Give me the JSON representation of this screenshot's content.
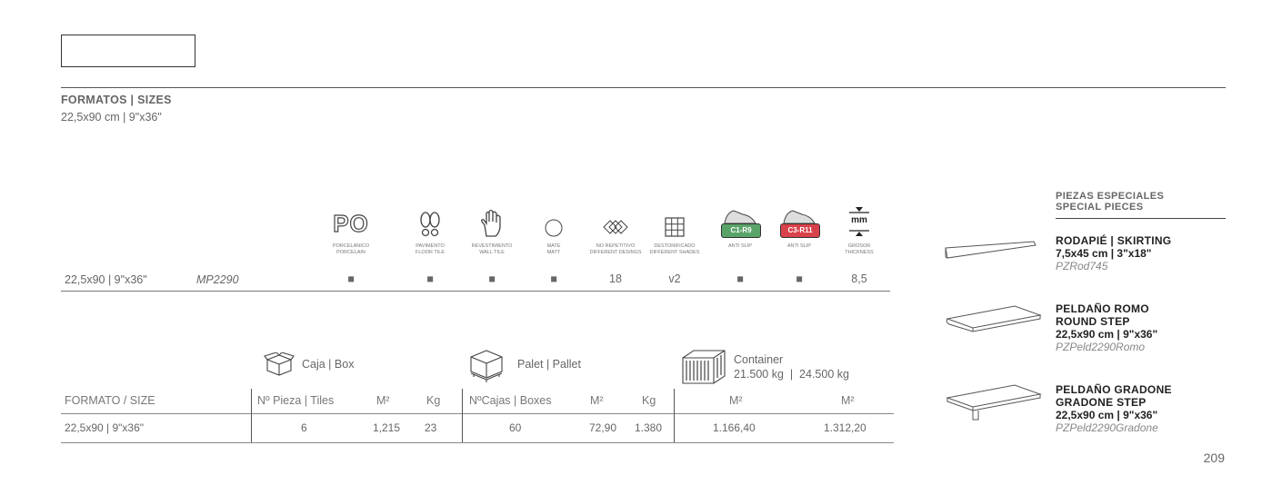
{
  "formatos": {
    "title": "FORMATOS | SIZES",
    "value": "22,5x90 cm | 9\"x36\""
  },
  "features": [
    {
      "icon": "porcelain-icon",
      "label1": "PORCELÁNICO",
      "label2": "PORCELAIN"
    },
    {
      "icon": "footprints-icon",
      "label1": "PAVIMENTO",
      "label2": "FLOOR TILE"
    },
    {
      "icon": "hand-icon",
      "label1": "REVESTIMIENTO",
      "label2": "WALL TILE"
    },
    {
      "icon": "circle-icon",
      "label1": "MATE",
      "label2": "MATT"
    },
    {
      "icon": "diamonds-icon",
      "label1": "NO REPETITIVO",
      "label2": "DIFFERENT DESINGS"
    },
    {
      "icon": "grid-icon",
      "label1": "DESTONIFICADO",
      "label2": "DIFFERENT SHADES"
    },
    {
      "icon": "shoe-green-icon",
      "badge": "C1-R9",
      "label1": "ANTI SLIP",
      "label2": ""
    },
    {
      "icon": "shoe-red-icon",
      "badge": "C3-R11",
      "label1": "ANTI SLIP",
      "label2": ""
    },
    {
      "icon": "thickness-icon",
      "badge": "mm",
      "label1": "GROSOR",
      "label2": "THICKNESS"
    }
  ],
  "porcelain_glyph": "PO",
  "product": {
    "size": "22,5x90 | 9\"x36\"",
    "code": "MP2290",
    "values": [
      "■",
      "■",
      "■",
      "■",
      "18",
      "v2",
      "■",
      "■",
      "8,5"
    ]
  },
  "packaging": {
    "box_label": "Caja | Box",
    "pallet_label": "Palet | Pallet",
    "container_label1": "Container",
    "container_label2": "21.500 kg  |  24.500 kg",
    "headers": {
      "formato": "FORMATO / SIZE",
      "pieza": "Nº Pieza | Tiles",
      "m2a": "M²",
      "kga": "Kg",
      "cajas": "NºCajas | Boxes",
      "m2b": "M²",
      "kgb": "Kg",
      "m2c": "M²",
      "m2d": "M²"
    },
    "row": {
      "formato": "22,5x90 | 9\"x36\"",
      "pieza": "6",
      "m2a": "1,215",
      "kga": "23",
      "cajas": "60",
      "m2b": "72,90",
      "kgb": "1.380",
      "m2c": "1.166,40",
      "m2d": "1.312,20"
    }
  },
  "special": {
    "head1": "PIEZAS ESPECIALES",
    "head2": "SPECIAL PIECES",
    "items": [
      {
        "name1": "RODAPIÉ | SKIRTING",
        "name2": "",
        "size": "7,5x45 cm | 3\"x18\"",
        "code": "PZRod745"
      },
      {
        "name1": "PELDAÑO ROMO",
        "name2": "ROUND STEP",
        "size": "22,5x90 cm | 9\"x36\"",
        "code": "PZPeld2290Romo"
      },
      {
        "name1": "PELDAÑO GRADONE",
        "name2": "GRADONE STEP",
        "size": "22,5x90 cm | 9\"x36\"",
        "code": "PZPeld2290Gradone"
      }
    ]
  },
  "page_number": "209"
}
